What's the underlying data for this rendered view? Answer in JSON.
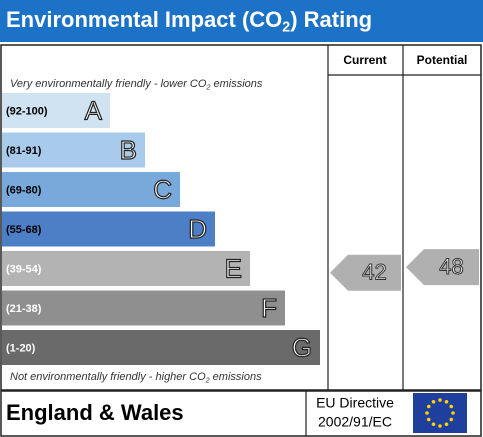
{
  "chart_data": {
    "type": "rating",
    "title": [
      "Environmental Impact (CO",
      "2",
      ") Rating"
    ],
    "columns": [
      "Current",
      "Potential"
    ],
    "top_note": [
      "Very environmentally friendly - lower CO",
      "2",
      " emissions"
    ],
    "bottom_note": [
      "Not environmentally friendly - higher CO",
      "2",
      " emissions"
    ],
    "bands": [
      {
        "range": "(92-100)",
        "letter": "A",
        "color": "#cfe3f3"
      },
      {
        "range": "(81-91)",
        "letter": "B",
        "color": "#a8cbeb"
      },
      {
        "range": "(69-80)",
        "letter": "C",
        "color": "#79a8db"
      },
      {
        "range": "(55-68)",
        "letter": "D",
        "color": "#4c7fc5"
      },
      {
        "range": "(39-54)",
        "letter": "E",
        "color": "#b3b3b3"
      },
      {
        "range": "(21-38)",
        "letter": "F",
        "color": "#8f8f8f"
      },
      {
        "range": "(1-20)",
        "letter": "G",
        "color": "#6a6a6a"
      }
    ],
    "current": 42,
    "potential": 48,
    "arrow_color": "#b0b0b0",
    "region": "England & Wales",
    "directive": [
      "EU Directive",
      "2002/91/EC"
    ]
  }
}
